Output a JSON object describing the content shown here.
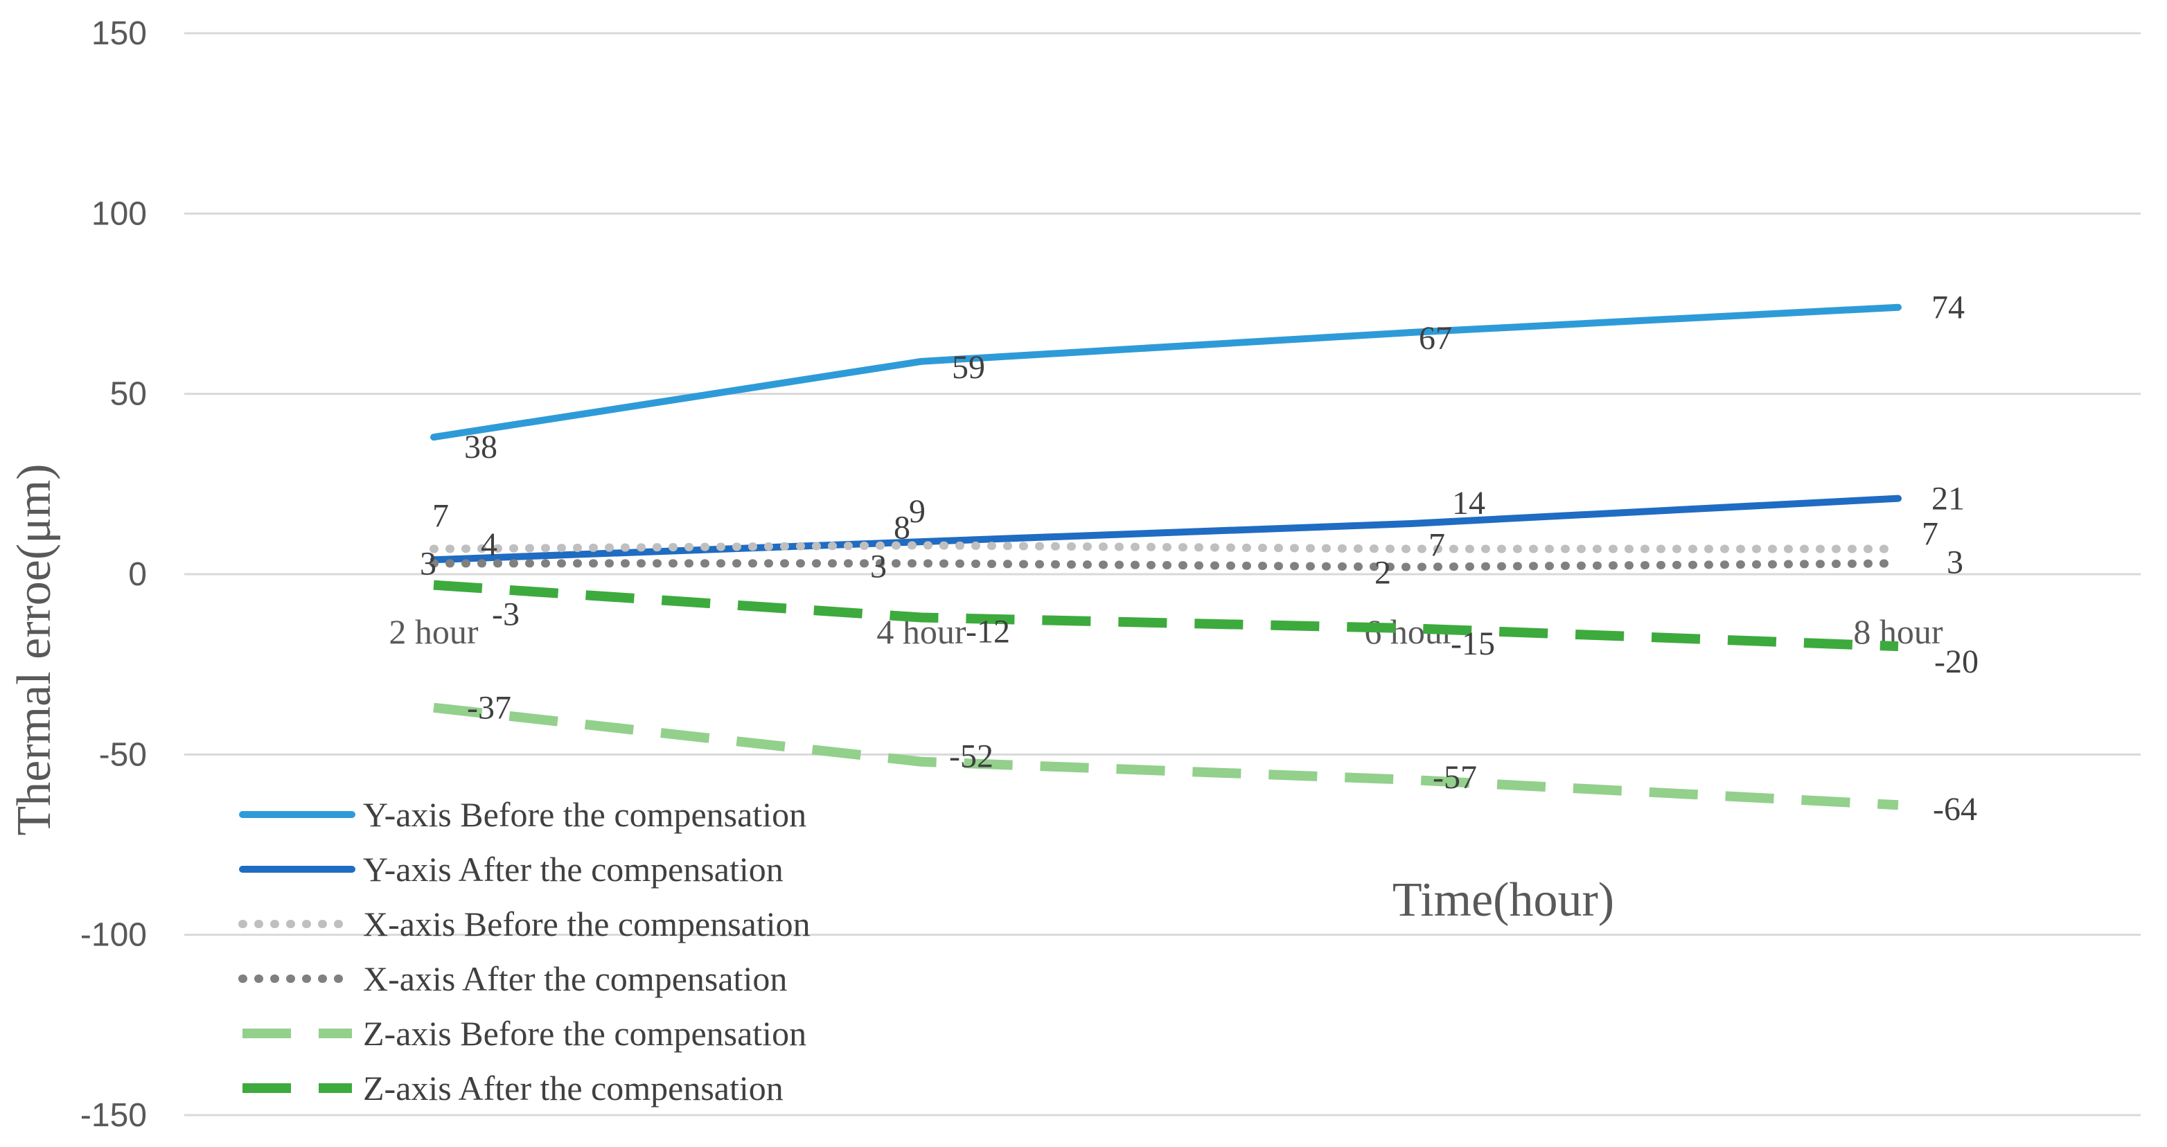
{
  "chart_data": {
    "type": "line",
    "title": "",
    "xlabel": "Time(hour)",
    "ylabel": "Thermal erroe(μm)",
    "categories": [
      "2 hour",
      "4 hour",
      "6 hour",
      "8 hour"
    ],
    "ylim": [
      -150,
      150
    ],
    "yticks": [
      150,
      100,
      50,
      0,
      -50,
      -100,
      -150
    ],
    "grid": true,
    "legend_position": "bottom-left",
    "series": [
      {
        "name": "Y-axis Before the compensation",
        "values": [
          38,
          59,
          67,
          74
        ],
        "color": "#2E9BD8",
        "style": "solid"
      },
      {
        "name": "Y-axis After the compensation",
        "values": [
          4,
          9,
          14,
          21
        ],
        "color": "#1F6CC2",
        "style": "solid"
      },
      {
        "name": "X-axis Before the compensation",
        "values": [
          7,
          8,
          7,
          7
        ],
        "color": "#BFBFBF",
        "style": "dotted"
      },
      {
        "name": "X-axis After the compensation",
        "values": [
          3,
          3,
          2,
          3
        ],
        "color": "#808080",
        "style": "dotted"
      },
      {
        "name": "Z-axis Before the compensation",
        "values": [
          -37,
          -52,
          -57,
          -64
        ],
        "color": "#92D08C",
        "style": "dashed"
      },
      {
        "name": "Z-axis After the compensation",
        "values": [
          -3,
          -12,
          -15,
          -20
        ],
        "color": "#3DAA3D",
        "style": "dashed"
      }
    ]
  }
}
